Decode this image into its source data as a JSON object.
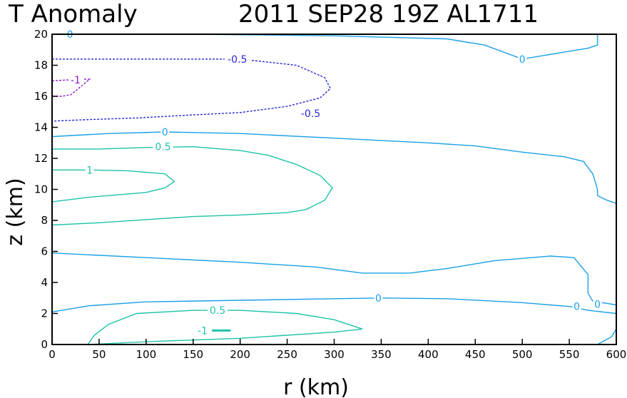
{
  "chart_data": {
    "type": "line",
    "title_left": "T Anomaly",
    "title_right": "2011 SEP28 19Z  AL1711",
    "xlabel": "r (km)",
    "ylabel": "z (km)",
    "xlim": [
      0,
      600
    ],
    "ylim": [
      0,
      20
    ],
    "xticks": [
      0,
      50,
      100,
      150,
      200,
      250,
      300,
      350,
      400,
      450,
      500,
      550,
      600
    ],
    "yticks": [
      0,
      2,
      4,
      6,
      8,
      10,
      12,
      14,
      16,
      18,
      20
    ],
    "colors": {
      "zero": "#1aa0e6",
      "pos_half": "#1ec3a8",
      "pos_one": "#1ec3a8",
      "neg_half": "#2828d8",
      "neg_one": "#8a1ad2"
    },
    "series": [
      {
        "level": "0",
        "style": "solid",
        "colorKey": "zero",
        "points": [
          [
            0,
            2.1
          ],
          [
            40,
            2.5
          ],
          [
            100,
            2.75
          ],
          [
            200,
            2.85
          ],
          [
            300,
            2.95
          ],
          [
            350,
            3.0
          ],
          [
            420,
            2.95
          ],
          [
            500,
            2.7
          ],
          [
            550,
            2.45
          ],
          [
            570,
            2.2
          ],
          [
            600,
            2.0
          ]
        ]
      },
      {
        "level": "0",
        "style": "solid",
        "colorKey": "zero",
        "points": [
          [
            0,
            5.9
          ],
          [
            100,
            5.6
          ],
          [
            200,
            5.3
          ],
          [
            280,
            5.0
          ],
          [
            330,
            4.6
          ],
          [
            380,
            4.6
          ],
          [
            420,
            4.9
          ],
          [
            470,
            5.4
          ],
          [
            530,
            5.7
          ],
          [
            555,
            5.6
          ],
          [
            570,
            4.5
          ],
          [
            570,
            3.3
          ],
          [
            575,
            2.8
          ],
          [
            585,
            2.7
          ],
          [
            600,
            2.55
          ]
        ]
      },
      {
        "level": "0",
        "style": "solid",
        "colorKey": "zero",
        "points": [
          [
            0,
            13.4
          ],
          [
            60,
            13.6
          ],
          [
            120,
            13.7
          ],
          [
            200,
            13.6
          ],
          [
            300,
            13.3
          ],
          [
            400,
            13.0
          ],
          [
            450,
            12.8
          ],
          [
            500,
            12.4
          ],
          [
            545,
            12.1
          ],
          [
            565,
            11.8
          ],
          [
            575,
            11.0
          ],
          [
            580,
            10.0
          ],
          [
            580,
            9.6
          ],
          [
            590,
            9.3
          ],
          [
            600,
            9.1
          ]
        ]
      },
      {
        "level": "0",
        "style": "solid",
        "colorKey": "zero",
        "points": [
          [
            20,
            20
          ],
          [
            150,
            20.0
          ],
          [
            300,
            19.9
          ],
          [
            420,
            19.7
          ],
          [
            460,
            19.3
          ],
          [
            500,
            18.4
          ],
          [
            540,
            18.8
          ],
          [
            570,
            19.1
          ],
          [
            580,
            19.3
          ],
          [
            580,
            20.0
          ]
        ]
      },
      {
        "level": "0",
        "style": "solid",
        "colorKey": "zero",
        "points": [
          [
            580,
            0
          ],
          [
            595,
            0.5
          ],
          [
            600,
            1.0
          ]
        ]
      },
      {
        "level": "0.5",
        "style": "solid",
        "colorKey": "pos_half",
        "points": [
          [
            38,
            0
          ],
          [
            45,
            0.6
          ],
          [
            60,
            1.3
          ],
          [
            90,
            2.0
          ],
          [
            150,
            2.2
          ],
          [
            200,
            2.2
          ],
          [
            260,
            2.0
          ],
          [
            300,
            1.6
          ],
          [
            330,
            1.0
          ],
          [
            300,
            0.8
          ],
          [
            200,
            0.4
          ],
          [
            110,
            0.2
          ],
          [
            38,
            0
          ]
        ]
      },
      {
        "level": "0.5",
        "style": "solid",
        "colorKey": "pos_half",
        "points": [
          [
            0,
            7.7
          ],
          [
            50,
            7.85
          ],
          [
            100,
            8.05
          ],
          [
            150,
            8.25
          ],
          [
            200,
            8.35
          ],
          [
            250,
            8.5
          ],
          [
            270,
            8.7
          ],
          [
            290,
            9.3
          ],
          [
            298,
            10.1
          ],
          [
            285,
            10.9
          ],
          [
            260,
            11.6
          ],
          [
            230,
            12.2
          ],
          [
            200,
            12.5
          ],
          [
            150,
            12.75
          ],
          [
            100,
            12.7
          ],
          [
            50,
            12.6
          ],
          [
            0,
            12.6
          ]
        ]
      },
      {
        "level": "1",
        "style": "solid",
        "colorKey": "pos_one",
        "points": [
          [
            0,
            9.2
          ],
          [
            40,
            9.5
          ],
          [
            100,
            9.8
          ],
          [
            120,
            10.1
          ],
          [
            130,
            10.5
          ],
          [
            120,
            11.0
          ],
          [
            80,
            11.2
          ],
          [
            40,
            11.25
          ],
          [
            0,
            11.25
          ]
        ]
      },
      {
        "level": "-1",
        "style": "solid",
        "colorKey": "pos_one",
        "points": [
          [
            170,
            0.9
          ],
          [
            190,
            0.9
          ]
        ]
      },
      {
        "level": "-0.5",
        "style": "dashed",
        "colorKey": "neg_half",
        "points": [
          [
            0,
            18.4
          ],
          [
            100,
            18.4
          ],
          [
            200,
            18.4
          ],
          [
            260,
            18.0
          ],
          [
            290,
            17.2
          ],
          [
            296,
            16.5
          ],
          [
            285,
            15.9
          ],
          [
            250,
            15.35
          ],
          [
            200,
            14.95
          ],
          [
            150,
            14.8
          ],
          [
            90,
            14.6
          ],
          [
            40,
            14.5
          ],
          [
            0,
            14.4
          ]
        ]
      },
      {
        "level": "-1",
        "style": "dashed",
        "colorKey": "neg_one",
        "points": [
          [
            0,
            17.0
          ],
          [
            30,
            17.1
          ],
          [
            40,
            17.1
          ],
          [
            30,
            16.6
          ],
          [
            20,
            16.1
          ],
          [
            10,
            16.0
          ],
          [
            0,
            16.0
          ]
        ]
      }
    ],
    "labels": [
      {
        "text": "0",
        "x": 19,
        "y": 20.0,
        "colorKey": "zero"
      },
      {
        "text": "-0.5",
        "x": 197,
        "y": 18.4,
        "colorKey": "neg_half"
      },
      {
        "text": "-1",
        "x": 25,
        "y": 17.05,
        "colorKey": "neg_one"
      },
      {
        "text": "-0.5",
        "x": 275,
        "y": 14.9,
        "colorKey": "neg_half"
      },
      {
        "text": "0",
        "x": 120,
        "y": 13.7,
        "colorKey": "zero"
      },
      {
        "text": "0.5",
        "x": 118,
        "y": 12.75,
        "colorKey": "pos_half"
      },
      {
        "text": "1",
        "x": 40,
        "y": 11.25,
        "colorKey": "pos_one"
      },
      {
        "text": "0",
        "x": 500,
        "y": 18.4,
        "colorKey": "zero"
      },
      {
        "text": "0",
        "x": 347,
        "y": 3.0,
        "colorKey": "zero"
      },
      {
        "text": "0.5",
        "x": 176,
        "y": 2.2,
        "colorKey": "pos_half"
      },
      {
        "text": "-1",
        "x": 160,
        "y": 0.9,
        "colorKey": "pos_one"
      },
      {
        "text": "0",
        "x": 558,
        "y": 2.45,
        "colorKey": "zero"
      },
      {
        "text": "0",
        "x": 580,
        "y": 2.6,
        "colorKey": "zero"
      }
    ]
  }
}
